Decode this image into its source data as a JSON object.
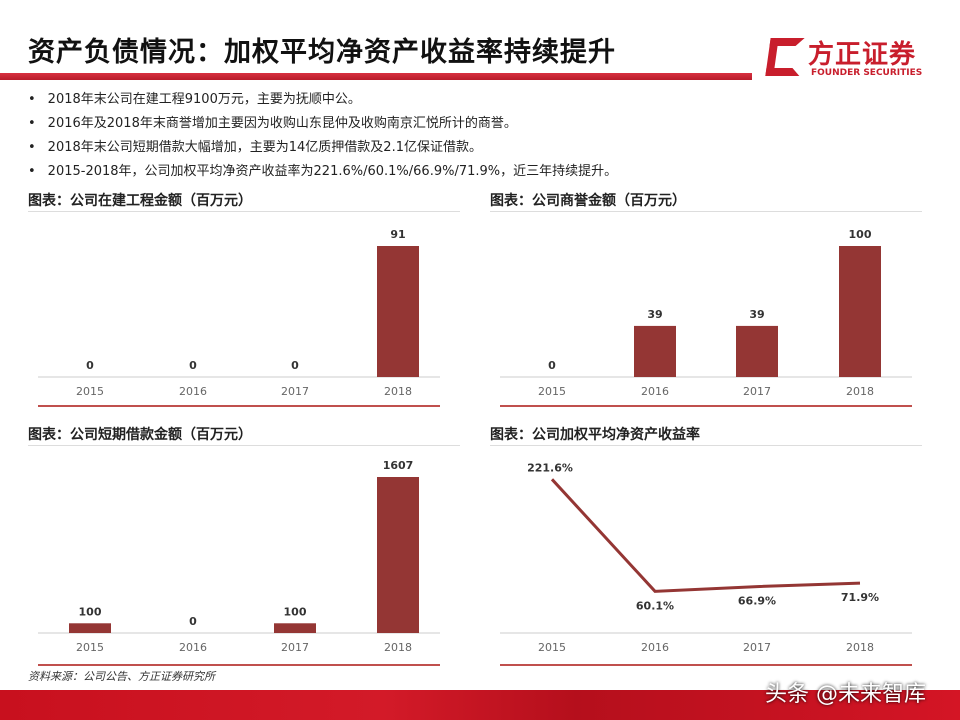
{
  "title": "资产负债情况：加权平均净资产收益率持续提升",
  "logo": {
    "cn": "方正证券",
    "en": "FOUNDER SECURITIES"
  },
  "bullets": [
    "2018年末公司在建工程9100万元，主要为抚顺中公。",
    "2016年及2018年末商誉增加主要因为收购山东昆仲及收购南京汇悦所计的商誉。",
    "2018年末公司短期借款大幅增加，主要为14亿质押借款及2.1亿保证借款。",
    "2015-2018年，公司加权平均净资产收益率为221.6%/60.1%/66.9%/71.9%，近三年持续提升。"
  ],
  "colors": {
    "bar": "#943634",
    "accent": "#c81e2c"
  },
  "chart_data": [
    {
      "type": "bar",
      "title": "图表：公司在建工程金额（百万元）",
      "categories": [
        "2015",
        "2016",
        "2017",
        "2018"
      ],
      "values": [
        0,
        0,
        0,
        91
      ],
      "labels": [
        "0",
        "0",
        "0",
        "91"
      ],
      "ylim": [
        0,
        91
      ]
    },
    {
      "type": "bar",
      "title": "图表：公司商誉金额（百万元）",
      "categories": [
        "2015",
        "2016",
        "2017",
        "2018"
      ],
      "values": [
        0,
        39,
        39,
        100
      ],
      "labels": [
        "0",
        "39",
        "39",
        "100"
      ],
      "ylim": [
        0,
        100
      ]
    },
    {
      "type": "bar",
      "title": "图表：公司短期借款金额（百万元）",
      "categories": [
        "2015",
        "2016",
        "2017",
        "2018"
      ],
      "values": [
        100,
        0,
        100,
        1607
      ],
      "labels": [
        "100",
        "0",
        "100",
        "1607"
      ],
      "ylim": [
        0,
        1607
      ]
    },
    {
      "type": "line",
      "title": "图表：公司加权平均净资产收益率",
      "categories": [
        "2015",
        "2016",
        "2017",
        "2018"
      ],
      "values": [
        221.6,
        60.1,
        66.9,
        71.9
      ],
      "labels": [
        "221.6%",
        "60.1%",
        "66.9%",
        "71.9%"
      ],
      "ylim": [
        0,
        221.6
      ]
    }
  ],
  "source": "资料来源：公司公告、方正证券研究所",
  "watermark": "头条 @未来智库"
}
